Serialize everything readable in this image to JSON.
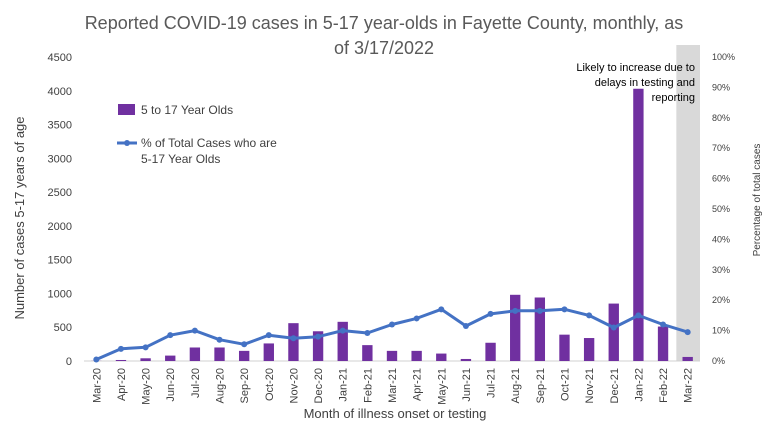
{
  "chart_data": {
    "type": "bar",
    "title_lines": [
      "Reported COVID-19 cases in 5-17 year-olds in Fayette County, monthly, as",
      "of 3/17/2022"
    ],
    "xlabel": "Month of illness onset or testing",
    "ylabel": "Number of cases 5-17 years of age",
    "y2label": "Percentage of total cases",
    "categories": [
      "Mar-20",
      "Apr-20",
      "May-20",
      "Jun-20",
      "Jul-20",
      "Aug-20",
      "Sep-20",
      "Oct-20",
      "Nov-20",
      "Dec-20",
      "Jan-21",
      "Feb-21",
      "Mar-21",
      "Apr-21",
      "May-21",
      "Jun-21",
      "Jul-21",
      "Aug-21",
      "Sep-21",
      "Oct-21",
      "Nov-21",
      "Dec-21",
      "Jan-22",
      "Feb-22",
      "Mar-22"
    ],
    "ylim": [
      0,
      4500
    ],
    "yticks": [
      "0",
      "500",
      "1000",
      "1500",
      "2000",
      "2500",
      "3000",
      "3500",
      "4000",
      "4500"
    ],
    "y2lim": [
      0,
      100
    ],
    "y2ticks": [
      "0%",
      "10%",
      "20%",
      "30%",
      "40%",
      "50%",
      "60%",
      "70%",
      "80%",
      "90%",
      "100%"
    ],
    "series": [
      {
        "name": "5 to 17 Year Olds",
        "type": "bar",
        "color": "#7030a0",
        "values": [
          2,
          15,
          40,
          80,
          200,
          200,
          150,
          260,
          560,
          440,
          580,
          235,
          150,
          150,
          110,
          30,
          270,
          980,
          940,
          390,
          340,
          850,
          4030,
          510,
          60
        ]
      },
      {
        "name": "% of Total Cases who are 5-17 Year Olds",
        "legend_lines": [
          "% of Total Cases who are",
          "5-17 Year Olds"
        ],
        "type": "line",
        "axis": "right",
        "color": "#4472c4",
        "values": [
          0.5,
          4,
          4.5,
          8.5,
          10,
          7,
          5.5,
          8.5,
          7.5,
          8,
          10,
          9.2,
          12,
          14,
          17,
          11.5,
          15.5,
          16.5,
          16.5,
          17,
          15,
          11,
          15,
          12,
          9.5
        ]
      }
    ],
    "shaded_region": {
      "category": "Mar-22",
      "color": "#d9d9d9"
    },
    "annotation_lines": [
      "Likely to increase due to",
      "delays in testing and",
      "reporting"
    ],
    "legend_position": "top-left"
  }
}
